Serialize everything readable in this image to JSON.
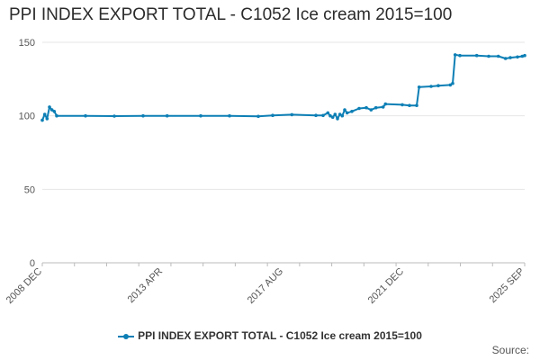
{
  "chart_data": {
    "type": "line",
    "title": "PPI INDEX EXPORT TOTAL - C1052 Ice cream 2015=100",
    "ylim": [
      0,
      150
    ],
    "yticks": [
      0,
      50,
      100,
      150
    ],
    "x_tick_labels": [
      "2008 DEC",
      "2013 APR",
      "2017 AUG",
      "2021 DEC",
      "2025 SEP"
    ],
    "x_range": [
      "2008-12",
      "2025-09"
    ],
    "grid": "horizontal",
    "legend_position": "bottom",
    "series": [
      {
        "name": "PPI INDEX EXPORT TOTAL - C1052 Ice cream 2015=100",
        "color": "#0d7fb5",
        "points": [
          [
            "2008-12",
            97
          ],
          [
            "2009-01",
            101
          ],
          [
            "2009-02",
            98
          ],
          [
            "2009-03",
            106
          ],
          [
            "2009-04",
            104
          ],
          [
            "2009-05",
            103
          ],
          [
            "2009-06",
            100
          ],
          [
            "2010-06",
            100
          ],
          [
            "2011-06",
            99.8
          ],
          [
            "2012-06",
            100
          ],
          [
            "2013-04",
            100
          ],
          [
            "2014-06",
            100
          ],
          [
            "2015-06",
            100
          ],
          [
            "2016-06",
            99.6
          ],
          [
            "2016-12",
            100.3
          ],
          [
            "2017-08",
            100.8
          ],
          [
            "2018-06",
            100.3
          ],
          [
            "2018-09",
            100.2
          ],
          [
            "2018-11",
            102
          ],
          [
            "2018-12",
            100
          ],
          [
            "2019-01",
            99
          ],
          [
            "2019-02",
            101
          ],
          [
            "2019-03",
            98
          ],
          [
            "2019-04",
            101
          ],
          [
            "2019-05",
            100
          ],
          [
            "2019-06",
            104
          ],
          [
            "2019-07",
            102
          ],
          [
            "2019-09",
            103
          ],
          [
            "2019-12",
            105
          ],
          [
            "2020-03",
            105.5
          ],
          [
            "2020-05",
            104
          ],
          [
            "2020-07",
            105.5
          ],
          [
            "2020-10",
            106
          ],
          [
            "2020-11",
            108
          ],
          [
            "2021-06",
            107.5
          ],
          [
            "2021-09",
            107
          ],
          [
            "2021-12",
            107
          ],
          [
            "2022-01",
            119.5
          ],
          [
            "2022-06",
            120
          ],
          [
            "2022-09",
            120.5
          ],
          [
            "2023-02",
            121
          ],
          [
            "2023-03",
            122
          ],
          [
            "2023-04",
            141.5
          ],
          [
            "2023-06",
            141
          ],
          [
            "2024-01",
            141
          ],
          [
            "2024-06",
            140.5
          ],
          [
            "2024-10",
            140.5
          ],
          [
            "2025-01",
            139
          ],
          [
            "2025-03",
            139.5
          ],
          [
            "2025-06",
            140
          ],
          [
            "2025-08",
            140.5
          ],
          [
            "2025-09",
            141
          ]
        ]
      }
    ]
  },
  "footer": {
    "source_label": "Source:"
  }
}
